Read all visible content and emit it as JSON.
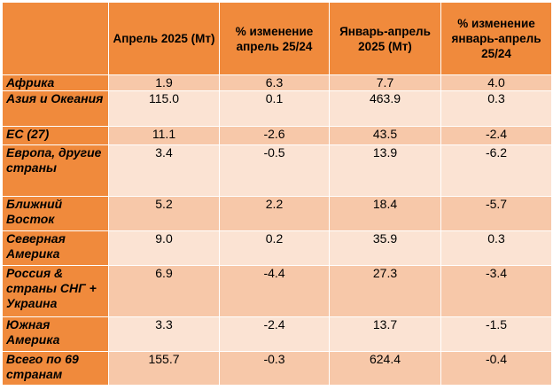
{
  "table": {
    "headers": [
      "",
      "Апрель  2025 (Мт)",
      "% изменение апрель 25/24",
      "Январь-апрель 2025 (Мт)",
      "% изменение январь-апрель 25/24"
    ],
    "rows": [
      {
        "region": "Африка",
        "cells": [
          "1.9",
          "6.3",
          "7.7",
          "4.0"
        ]
      },
      {
        "region": "Азия и Океания",
        "cells": [
          "115.0",
          "0.1",
          "463.9",
          "0.3"
        ]
      },
      {
        "region": "ЕС (27)",
        "cells": [
          "11.1",
          "-2.6",
          "43.5",
          "-2.4"
        ]
      },
      {
        "region": "Европа, другие страны",
        "cells": [
          "3.4",
          "-0.5",
          "13.9",
          "-6.2"
        ]
      },
      {
        "region": "Ближний Восток",
        "cells": [
          "5.2",
          "2.2",
          "18.4",
          "-5.7"
        ]
      },
      {
        "region": "Северная Америка",
        "cells": [
          "9.0",
          "0.2",
          "35.9",
          "0.3"
        ]
      },
      {
        "region": "Россия & страны СНГ + Украина",
        "cells": [
          "6.9",
          "-4.4",
          "27.3",
          "-3.4"
        ]
      },
      {
        "region": "Южная Америка",
        "cells": [
          "3.3",
          "-2.4",
          "13.7",
          "-1.5"
        ]
      },
      {
        "region": "Всего по 69 странам",
        "cells": [
          "155.7",
          "-0.3",
          "624.4",
          "-0.4"
        ]
      }
    ]
  },
  "colors": {
    "header_fill": "#f08a3c",
    "row_fill_odd": "#f7c8a9",
    "row_fill_even": "#fbe3d3"
  }
}
